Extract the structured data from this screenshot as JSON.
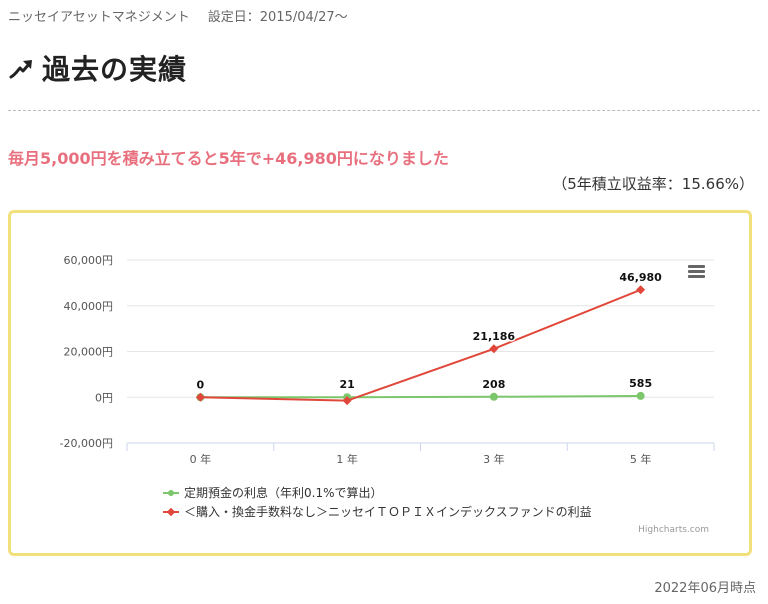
{
  "header": {
    "fund_name": "ニッセイアセットマネジメント",
    "setup_date": "設定日：2015/04/27～"
  },
  "section": {
    "title": "過去の実績",
    "icon": "trend-up-arrow-icon"
  },
  "headline": "毎月5,000円を積み立てると5年で+46,980円になりました",
  "rate": "（5年積立収益率：15.66%）",
  "chart_data": {
    "type": "line",
    "categories": [
      "0 年",
      "1 年",
      "3 年",
      "5 年"
    ],
    "y_ticks": [
      "-20,000円",
      "0円",
      "20,000円",
      "40,000円",
      "60,000円"
    ],
    "ylim": [
      -20000,
      60000
    ],
    "series": [
      {
        "name": "定期預金の利息（年利0.1%で算出）",
        "color": "#7cc66b",
        "marker": "circle",
        "values": [
          0,
          21,
          208,
          585
        ],
        "labels": [
          "0",
          "21",
          "208",
          "585"
        ]
      },
      {
        "name": "＜購入・換金手数料なし＞ニッセイＴＯＰＩＸインデックスファンドの利益",
        "color": "#e0473a",
        "marker": "diamond",
        "values": [
          0,
          -1500,
          21186,
          46980
        ],
        "labels": [
          "",
          "",
          "21,186",
          "46,980"
        ]
      }
    ],
    "legend_position": "bottom-left",
    "grid": true
  },
  "credit": "Highcharts.com",
  "footer": "2022年06月時点"
}
